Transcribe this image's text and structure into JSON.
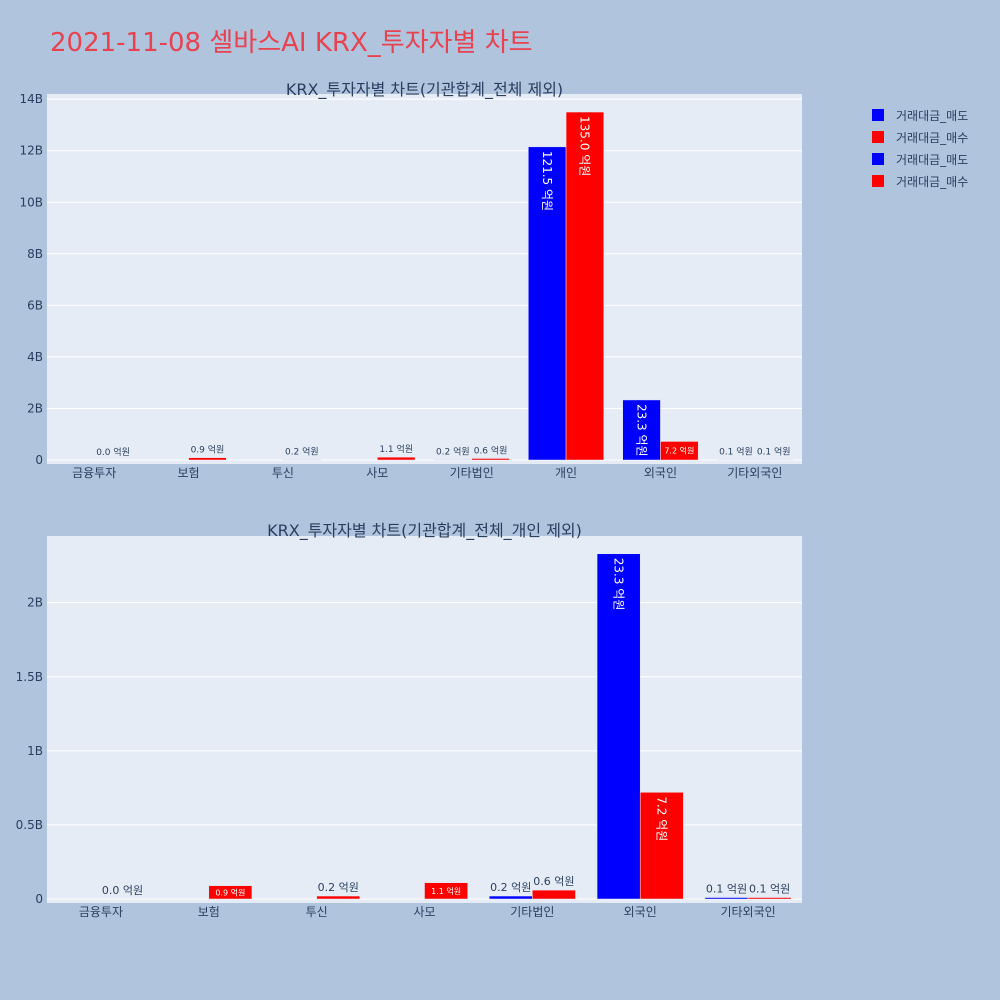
{
  "page": {
    "title": "2021-11-08 셀바스AI KRX_투자자별 차트"
  },
  "legend": {
    "items": [
      {
        "label": "거래대금_매도",
        "color": "#0000ff"
      },
      {
        "label": "거래대금_매수",
        "color": "#ff0000"
      },
      {
        "label": "거래대금_매도",
        "color": "#0000ff"
      },
      {
        "label": "거래대금_매수",
        "color": "#ff0000"
      }
    ]
  },
  "chart_data": [
    {
      "type": "bar",
      "title": "KRX_투자자별 차트(기관합계_전체 제외)",
      "categories": [
        "금융투자",
        "보험",
        "투신",
        "사모",
        "기타법인",
        "개인",
        "외국인",
        "기타외국인"
      ],
      "series": [
        {
          "name": "거래대금_매도",
          "color": "#0000ff",
          "values": [
            0,
            0,
            0,
            0,
            0.02,
            12.15,
            2.33,
            0.01
          ],
          "labels": [
            "",
            "",
            "",
            "",
            "0.2 억원",
            "121.5 억원",
            "23.3 억원",
            "0.1 억원"
          ]
        },
        {
          "name": "거래대금_매수",
          "color": "#ff0000",
          "values": [
            0.0,
            0.09,
            0.02,
            0.11,
            0.06,
            13.5,
            0.72,
            0.01
          ],
          "labels": [
            "0.0 억원",
            "0.9 억원",
            "0.2 억원",
            "1.1 억원",
            "0.6 억원",
            "135.0 억원",
            "7.2 억원",
            "0.1 억원"
          ]
        }
      ],
      "yticks": [
        0,
        2,
        4,
        6,
        8,
        10,
        12,
        14
      ],
      "ytick_labels": [
        "0",
        "2B",
        "4B",
        "6B",
        "8B",
        "10B",
        "12B",
        "14B"
      ],
      "ylim": [
        0,
        14.2
      ]
    },
    {
      "type": "bar",
      "title": "KRX_투자자별 차트(기관합계_전체_개인 제외)",
      "categories": [
        "금융투자",
        "보험",
        "투신",
        "사모",
        "기타법인",
        "외국인",
        "기타외국인"
      ],
      "series": [
        {
          "name": "거래대금_매도",
          "color": "#0000ff",
          "values": [
            0,
            0,
            0,
            0,
            0.02,
            2.33,
            0.01
          ],
          "labels": [
            "",
            "",
            "",
            "",
            "0.2 억원",
            "23.3 억원",
            "0.1 억원"
          ]
        },
        {
          "name": "거래대금_매수",
          "color": "#ff0000",
          "values": [
            0.0,
            0.09,
            0.02,
            0.11,
            0.06,
            0.72,
            0.01
          ],
          "labels": [
            "0.0 억원",
            "0.9 억원",
            "0.2 억원",
            "1.1 억원",
            "0.6 억원",
            "7.2 억원",
            "0.1 억원"
          ]
        }
      ],
      "yticks": [
        0,
        0.5,
        1,
        1.5,
        2
      ],
      "ytick_labels": [
        "0",
        "0.5B",
        "1B",
        "1.5B",
        "2B"
      ],
      "ylim": [
        0,
        2.45
      ]
    }
  ]
}
